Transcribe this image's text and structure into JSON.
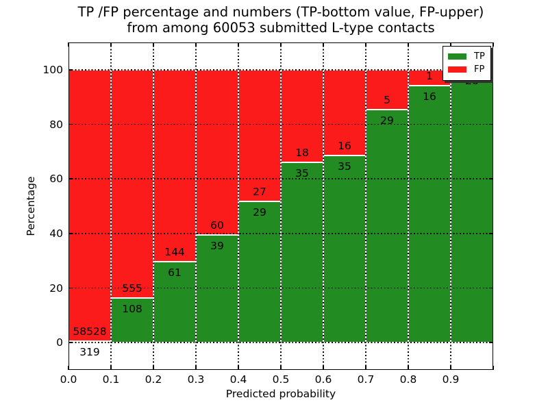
{
  "title": {
    "line1": "TP /FP percentage and numbers (TP-bottom value, FP-upper)",
    "line2": "from among 60053 submitted L-type contacts"
  },
  "chart_data": {
    "type": "bar",
    "stacked": true,
    "normalized_to_percent": true,
    "title": "TP /FP percentage and numbers (TP-bottom value, FP-upper) from among 60053 submitted L-type contacts",
    "xlabel": "Predicted probability",
    "ylabel": "Percentage",
    "categories": [
      "0.0-0.1",
      "0.1-0.2",
      "0.2-0.3",
      "0.3-0.4",
      "0.4-0.5",
      "0.5-0.6",
      "0.6-0.7",
      "0.7-0.8",
      "0.8-0.9",
      "0.9-1.0"
    ],
    "series": [
      {
        "name": "TP",
        "color": "#228b22",
        "values": [
          319,
          108,
          61,
          39,
          29,
          35,
          35,
          29,
          16,
          28
        ]
      },
      {
        "name": "FP",
        "color": "#fc1b1b",
        "values": [
          58528,
          555,
          144,
          60,
          27,
          18,
          16,
          5,
          1,
          0
        ]
      }
    ],
    "total_contacts": 60053,
    "xlim": [
      0,
      1.0
    ],
    "ylim": [
      -10,
      110
    ],
    "xticks": [
      "0.0",
      "0.1",
      "0.2",
      "0.3",
      "0.4",
      "0.5",
      "0.6",
      "0.7",
      "0.8",
      "0.9"
    ],
    "yticks": [
      0,
      20,
      40,
      60,
      80,
      100
    ],
    "grid": "dotted black, both axes",
    "legend": {
      "position": "upper right",
      "entries": [
        "TP",
        "FP"
      ],
      "shadow": true
    },
    "bar_label_rule": "TP count below segment boundary, FP count above; FP label omitted when FP=0"
  }
}
